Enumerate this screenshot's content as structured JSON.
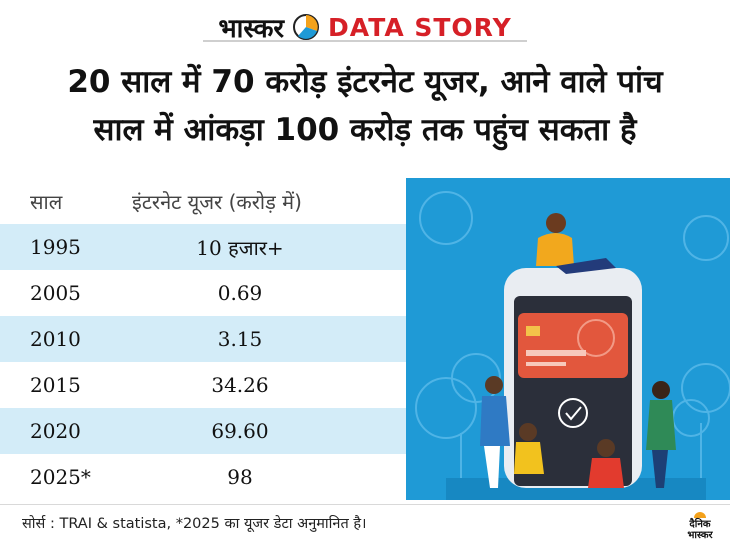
{
  "brand": {
    "name": "भास्कर",
    "tag": "DATA STORY"
  },
  "headline": {
    "line1": "20 साल में 70 करोड़ इंटरनेट यूजर, आने वाले पांच",
    "line2": "साल में आंकड़ा 100 करोड़ तक पहुंच सकता है"
  },
  "chart_data": {
    "type": "table",
    "title": "20 साल में 70 करोड़ इंटरनेट यूजर, आने वाले पांच साल में आंकड़ा 100 करोड़ तक पहुंच सकता है",
    "columns": [
      "साल",
      "इंटरनेट यूजर (करोड़ में)"
    ],
    "rows": [
      {
        "year": "1995",
        "value": "10 हजार+"
      },
      {
        "year": "2005",
        "value": "0.69"
      },
      {
        "year": "2010",
        "value": "3.15"
      },
      {
        "year": "2015",
        "value": "34.26"
      },
      {
        "year": "2020",
        "value": "69.60"
      },
      {
        "year": "2025*",
        "value": "98"
      }
    ],
    "source": "सोर्स : TRAI & statista, *2025 का यूजर डेटा अनुमानित है।"
  },
  "logo": {
    "line1": "दैनिक",
    "line2": "भास्कर"
  },
  "colors": {
    "row_shade": "#d3ecf8",
    "illustration_bg": "#1f9ad6",
    "accent_red": "#d62027",
    "pie_blue": "#1f9ad6",
    "pie_orange": "#f4a21c"
  }
}
